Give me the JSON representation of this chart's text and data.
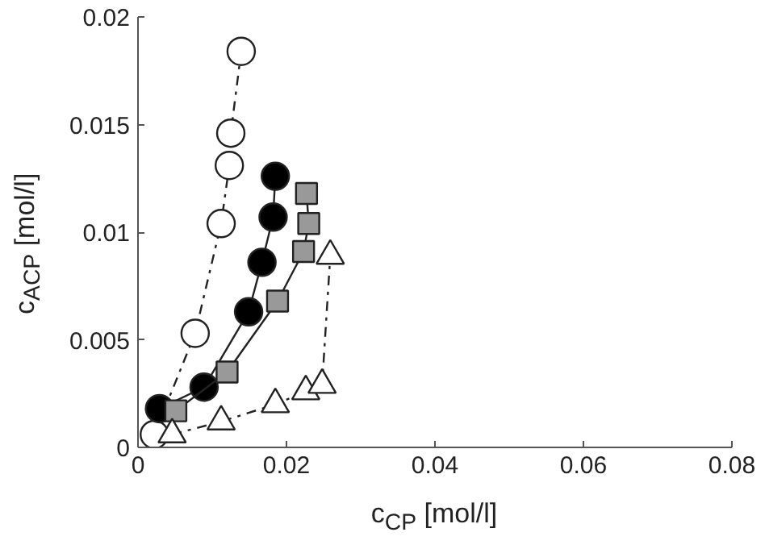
{
  "chart_data": {
    "type": "line",
    "xlabel": "c$_{CP}$ [mol/l]",
    "ylabel": "c$_{ACP}$ [mol/l]",
    "xlim": [
      0,
      0.08
    ],
    "ylim": [
      0,
      0.02
    ],
    "xticks": [
      0,
      0.02,
      0.04,
      0.06,
      0.08
    ],
    "yticks": [
      0,
      0.005,
      0.01,
      0.015,
      0.02
    ],
    "grid": false,
    "series": [
      {
        "color": "#ffffff",
        "marker": "circle",
        "line_style": "dashdot",
        "x": [
          0.0022,
          0.0077,
          0.0112,
          0.0123,
          0.0125,
          0.0139
        ],
        "values": [
          0.0006,
          0.0053,
          0.0104,
          0.0131,
          0.0146,
          0.0184
        ]
      },
      {
        "color": "#000000",
        "marker": "circle",
        "line_style": "solid",
        "x": [
          0.0029,
          0.0089,
          0.0149,
          0.0167,
          0.0182,
          0.0185
        ],
        "values": [
          0.0018,
          0.0028,
          0.0063,
          0.0086,
          0.0107,
          0.0126
        ]
      },
      {
        "color": "#999999",
        "marker": "square",
        "line_style": "solid",
        "x": [
          0.0051,
          0.012,
          0.0188,
          0.0223,
          0.023,
          0.0227
        ],
        "values": [
          0.0017,
          0.0035,
          0.0068,
          0.0091,
          0.0104,
          0.0118
        ]
      },
      {
        "color": "#ffffff",
        "marker": "triangle",
        "line_style": "dashdot",
        "x": [
          0.0046,
          0.0112,
          0.0185,
          0.0226,
          0.0248,
          0.0259
        ],
        "values": [
          0.0006,
          0.0012,
          0.002,
          0.0026,
          0.0029,
          0.0089
        ]
      }
    ]
  }
}
